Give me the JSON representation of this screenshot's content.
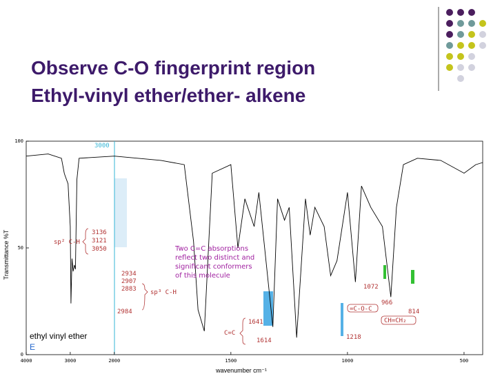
{
  "title_lines": [
    "Observe C-O  fingerprint region",
    "Ethyl-vinyl ether/ether- alkene"
  ],
  "chart_data": {
    "type": "line",
    "xlabel": "wavenumber cm⁻¹",
    "ylabel": "Transmittance %T",
    "x": [
      4000,
      3500,
      3200,
      3136,
      3121,
      3050,
      3000,
      2984,
      2960,
      2934,
      2907,
      2883,
      2850,
      2800,
      2000,
      1800,
      1700,
      1660,
      1641,
      1614,
      1580,
      1500,
      1470,
      1440,
      1400,
      1380,
      1320,
      1300,
      1270,
      1250,
      1218,
      1180,
      1160,
      1140,
      1100,
      1072,
      1045,
      1000,
      966,
      940,
      900,
      850,
      814,
      790,
      760,
      700,
      600,
      500,
      450,
      420
    ],
    "series": [
      {
        "name": "ethyl vinyl ether",
        "color": "#000000",
        "values": [
          93,
          94,
          92,
          85,
          84,
          80,
          60,
          24,
          45,
          39,
          42,
          40,
          82,
          92,
          93,
          91,
          89,
          53,
          21,
          11,
          85,
          89,
          50,
          73,
          60,
          76,
          13,
          73,
          63,
          69,
          8,
          73,
          56,
          69,
          60,
          37,
          44,
          76,
          34,
          79,
          69,
          60,
          27,
          69,
          89,
          92,
          91,
          85,
          89,
          90
        ]
      }
    ],
    "xlim": [
      4000,
      420
    ],
    "ylim": [
      0,
      100
    ],
    "xticks": [
      4000,
      3000,
      2000,
      1500,
      1000,
      500
    ],
    "yticks": [
      0,
      50,
      100
    ],
    "scale_break": 2000,
    "grid": false,
    "marker_label": "E",
    "annotations": [
      "3000",
      "3136",
      "3121",
      "3050",
      "sp² C-H",
      "2934",
      "2907",
      "2883",
      "sp³ C-H",
      "2984",
      "Two C=C absorptions",
      "reflect two distinct and",
      "significant conformers",
      "of this molecule",
      "1641",
      "C=C",
      "1614",
      "1072",
      "=C-O-C",
      "1218",
      "966",
      "CH=CH₂",
      "814"
    ]
  }
}
